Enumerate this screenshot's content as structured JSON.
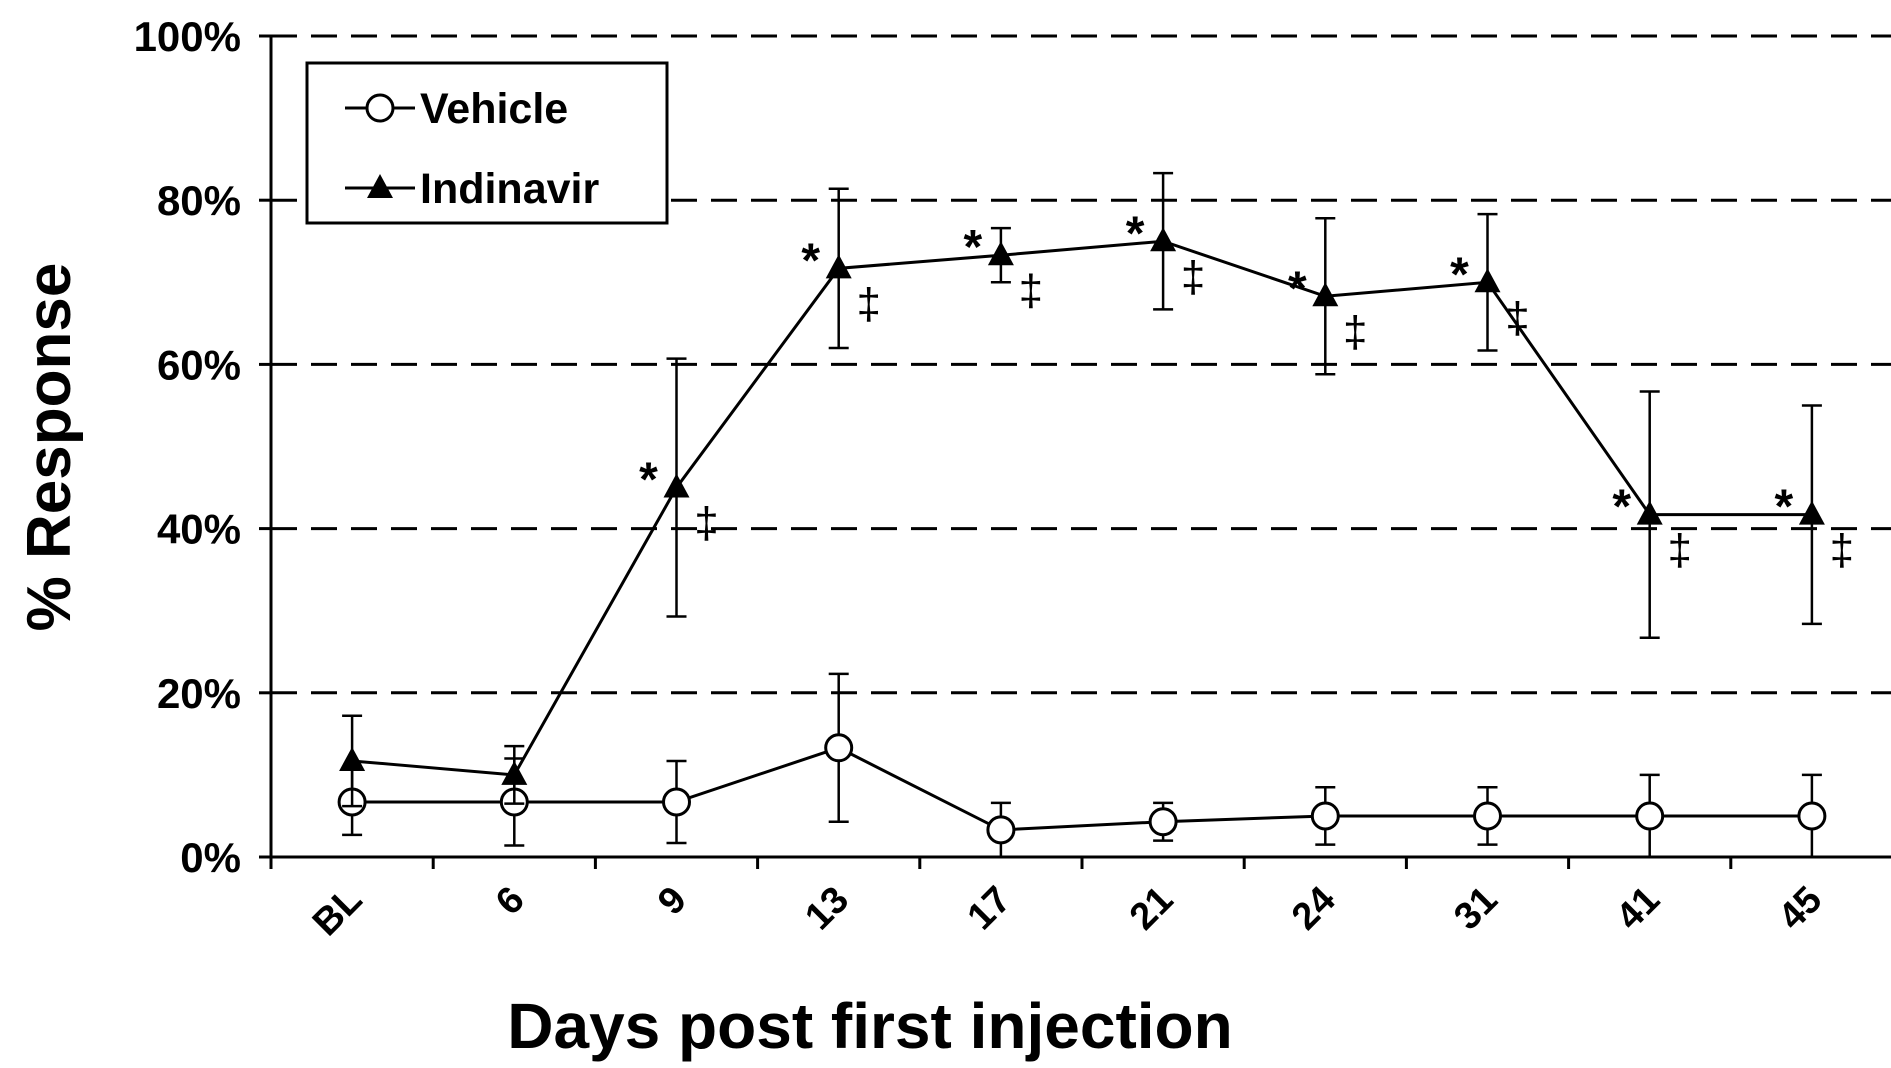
{
  "chart_data": {
    "type": "line",
    "xlabel": "Days post first injection",
    "ylabel": "% Response",
    "categories": [
      "BL",
      "6",
      "9",
      "13",
      "17",
      "21",
      "24",
      "31",
      "41",
      "45"
    ],
    "ylim": [
      0,
      100
    ],
    "yticks": [
      {
        "value": 0,
        "label": "0%"
      },
      {
        "value": 20,
        "label": "20%"
      },
      {
        "value": 40,
        "label": "40%"
      },
      {
        "value": 60,
        "label": "60%"
      },
      {
        "value": 80,
        "label": "80%"
      },
      {
        "value": 100,
        "label": "100%"
      }
    ],
    "grid": true,
    "legend": "upper left",
    "series": [
      {
        "name": "Vehicle",
        "color": "#000000",
        "marker": "circle",
        "values": [
          6.7,
          6.7,
          6.7,
          13.3,
          3.3,
          4.3,
          5,
          5,
          5,
          5
        ],
        "errors": [
          4,
          5.3,
          5,
          9,
          3.3,
          2.3,
          3.5,
          3.5,
          5,
          5
        ]
      },
      {
        "name": "Indinavir",
        "color": "#000000",
        "marker": "triangle",
        "values": [
          11.7,
          10,
          45,
          71.7,
          73.3,
          75,
          68.3,
          70,
          41.7,
          41.7
        ],
        "errors": [
          5.5,
          3.5,
          15.7,
          9.7,
          3.3,
          8.3,
          9.5,
          8.3,
          15,
          13.3
        ]
      }
    ],
    "annotations": [
      {
        "x": "9",
        "labels": [
          "*",
          "‡"
        ]
      },
      {
        "x": "13",
        "labels": [
          "*",
          "‡"
        ]
      },
      {
        "x": "17",
        "labels": [
          "*",
          "‡"
        ]
      },
      {
        "x": "21",
        "labels": [
          "*",
          "‡"
        ]
      },
      {
        "x": "24",
        "labels": [
          "*",
          "‡"
        ]
      },
      {
        "x": "31",
        "labels": [
          "*",
          "‡"
        ]
      },
      {
        "x": "41",
        "labels": [
          "*",
          "‡"
        ]
      },
      {
        "x": "45",
        "labels": [
          "*",
          "‡"
        ]
      }
    ]
  }
}
